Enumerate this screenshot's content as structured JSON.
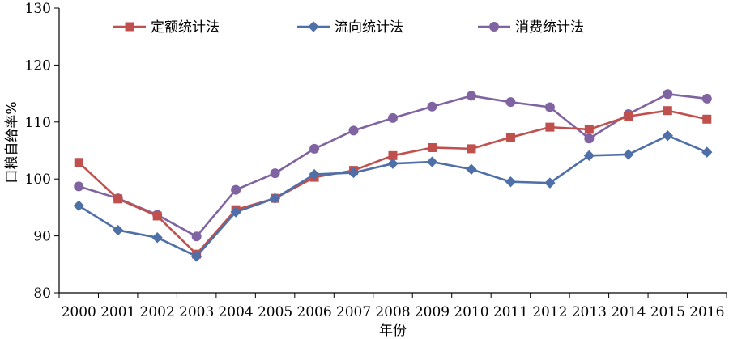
{
  "chart_data": {
    "type": "line",
    "title": "",
    "xlabel": "年份",
    "ylabel": "口粮自给率%",
    "x": [
      "2000",
      "2001",
      "2002",
      "2003",
      "2004",
      "2005",
      "2006",
      "2007",
      "2008",
      "2009",
      "2010",
      "2011",
      "2012",
      "2013",
      "2014",
      "2015",
      "2016"
    ],
    "ylim": [
      80,
      130
    ],
    "yticks": [
      "80",
      "90",
      "100",
      "110",
      "120",
      "130"
    ],
    "grid": false,
    "legend_position": "top",
    "series": [
      {
        "name": "定额统计法",
        "color": "#c0504d",
        "marker": "square",
        "values": [
          102.9,
          96.5,
          93.5,
          86.8,
          94.6,
          96.6,
          100.3,
          101.5,
          104.1,
          105.5,
          105.3,
          107.3,
          109.1,
          108.7,
          111.0,
          112.0,
          110.5
        ]
      },
      {
        "name": "流向统计法",
        "color": "#4f6fa8",
        "marker": "diamond",
        "values": [
          95.3,
          91.0,
          89.7,
          86.4,
          94.2,
          96.6,
          100.8,
          101.1,
          102.7,
          103.0,
          101.7,
          99.5,
          99.3,
          104.1,
          104.3,
          107.6,
          104.7
        ]
      },
      {
        "name": "消费统计法",
        "color": "#8064a2",
        "marker": "circle",
        "values": [
          98.7,
          96.6,
          93.7,
          89.9,
          98.1,
          101.0,
          105.3,
          108.5,
          110.7,
          112.7,
          114.6,
          113.5,
          112.6,
          107.1,
          111.4,
          114.9,
          114.1
        ]
      }
    ]
  }
}
